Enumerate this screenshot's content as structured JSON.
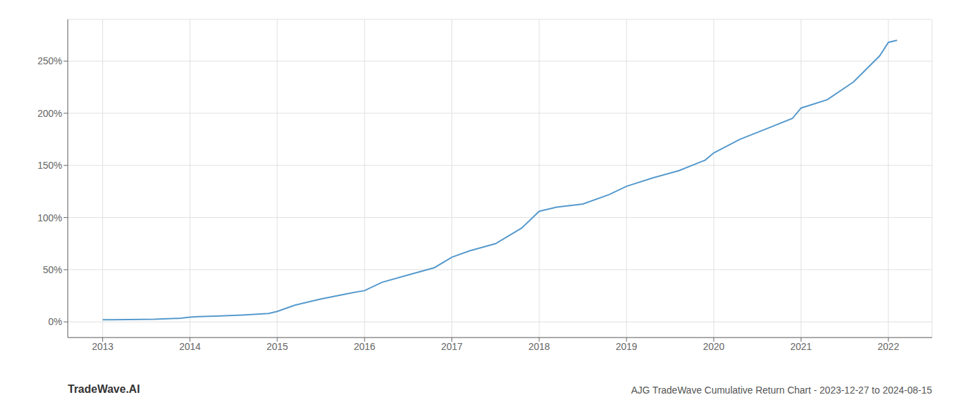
{
  "chart_data": {
    "type": "line",
    "title": "AJG TradeWave Cumulative Return Chart - 2023-12-27 to 2024-08-15",
    "annotations": [
      "TradeWave.AI"
    ],
    "x": [
      2013.0,
      2013.1,
      2013.3,
      2013.6,
      2013.9,
      2014.0,
      2014.1,
      2014.3,
      2014.6,
      2014.9,
      2015.0,
      2015.2,
      2015.5,
      2015.8,
      2016.0,
      2016.2,
      2016.5,
      2016.8,
      2017.0,
      2017.2,
      2017.5,
      2017.8,
      2018.0,
      2018.2,
      2018.5,
      2018.8,
      2019.0,
      2019.3,
      2019.6,
      2019.9,
      2020.0,
      2020.3,
      2020.6,
      2020.9,
      2021.0,
      2021.3,
      2021.6,
      2021.9,
      2022.0,
      2022.1
    ],
    "values": [
      2,
      2.1,
      2.2,
      2.5,
      3.5,
      4.5,
      5,
      5.5,
      6.5,
      8,
      10,
      16,
      22,
      27,
      30,
      38,
      45,
      52,
      62,
      68,
      75,
      90,
      106,
      110,
      113,
      122,
      130,
      138,
      145,
      155,
      162,
      175,
      185,
      195,
      205,
      213,
      230,
      255,
      268,
      270
    ],
    "color": "#5599cc",
    "xlim": [
      2012.6,
      2022.5
    ],
    "ylim": [
      -15,
      290
    ],
    "xticks": [
      2013,
      2014,
      2015,
      2016,
      2017,
      2018,
      2019,
      2020,
      2021,
      2022
    ],
    "yticks": [
      {
        "value": 0,
        "label": "0%"
      },
      {
        "value": 50,
        "label": "50%"
      },
      {
        "value": 100,
        "label": "100%"
      },
      {
        "value": 150,
        "label": "150%"
      },
      {
        "value": 200,
        "label": "200%"
      },
      {
        "value": 250,
        "label": "250%"
      }
    ],
    "grid": true
  }
}
